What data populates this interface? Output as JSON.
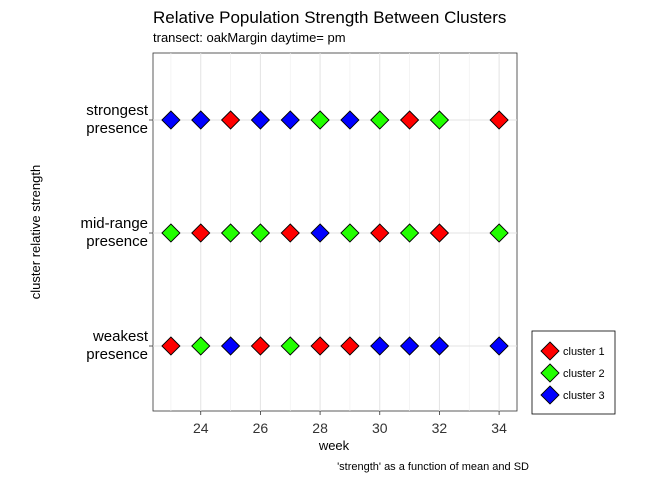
{
  "chart_data": {
    "type": "scatter",
    "title": "Relative Population Strength Between Clusters",
    "subtitle": "transect: oakMargin daytime= pm",
    "xlabel": "week",
    "ylabel": "cluster relative strength",
    "caption": "'strength' as a function of mean and SD",
    "x_ticks": [
      24,
      26,
      28,
      30,
      32,
      34
    ],
    "xlim": [
      22.4,
      34.6
    ],
    "y_categories": [
      {
        "lines": [
          "weakest",
          "presence"
        ]
      },
      {
        "lines": [
          "mid-range",
          "presence"
        ]
      },
      {
        "lines": [
          "strongest",
          "presence"
        ]
      }
    ],
    "grid": true,
    "legend_position": "right",
    "series": [
      {
        "name": "cluster 1",
        "color": "#ff0000",
        "marker": "diamond",
        "points": [
          [
            23,
            0
          ],
          [
            26,
            0
          ],
          [
            28,
            0
          ],
          [
            29,
            0
          ],
          [
            24,
            1
          ],
          [
            27,
            1
          ],
          [
            30,
            1
          ],
          [
            32,
            1
          ],
          [
            25,
            2
          ],
          [
            31,
            2
          ],
          [
            34,
            2
          ]
        ]
      },
      {
        "name": "cluster 2",
        "color": "#22ff00",
        "marker": "diamond",
        "points": [
          [
            24,
            0
          ],
          [
            27,
            0
          ],
          [
            23,
            1
          ],
          [
            25,
            1
          ],
          [
            26,
            1
          ],
          [
            29,
            1
          ],
          [
            31,
            1
          ],
          [
            34,
            1
          ],
          [
            28,
            2
          ],
          [
            30,
            2
          ],
          [
            32,
            2
          ]
        ]
      },
      {
        "name": "cluster 3",
        "color": "#0000ff",
        "marker": "diamond",
        "points": [
          [
            25,
            0
          ],
          [
            30,
            0
          ],
          [
            31,
            0
          ],
          [
            32,
            0
          ],
          [
            34,
            0
          ],
          [
            28,
            1
          ],
          [
            23,
            2
          ],
          [
            24,
            2
          ],
          [
            26,
            2
          ],
          [
            27,
            2
          ],
          [
            29,
            2
          ]
        ]
      }
    ]
  }
}
